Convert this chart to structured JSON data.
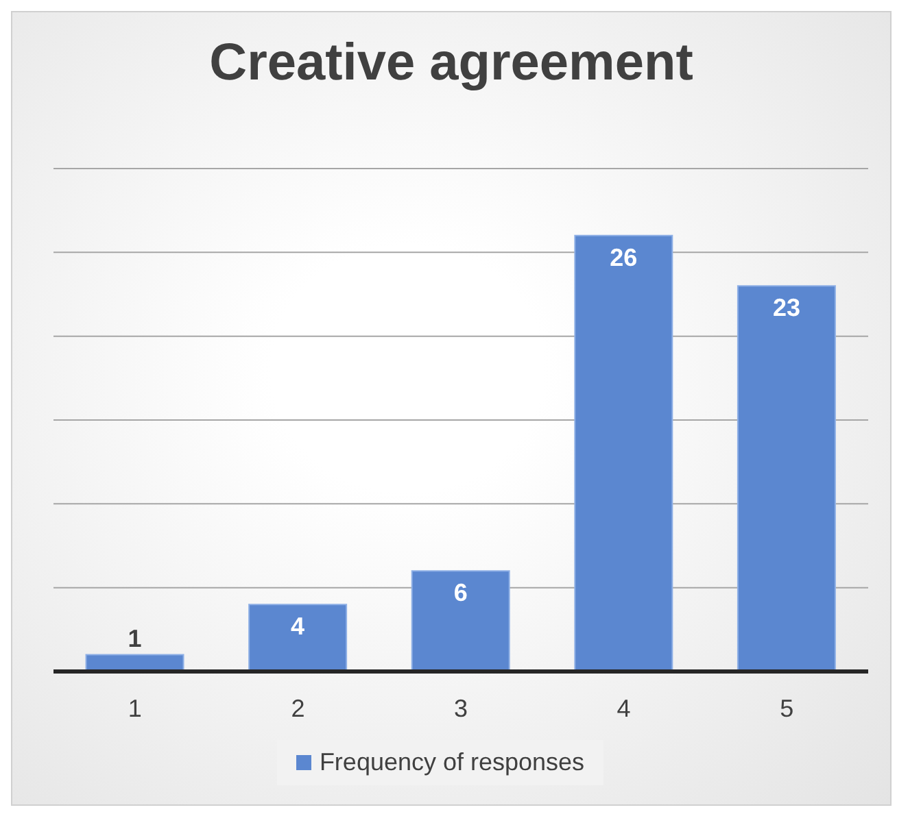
{
  "chart_data": {
    "type": "bar",
    "title": "Creative agreement",
    "categories": [
      "1",
      "2",
      "3",
      "4",
      "5"
    ],
    "series": [
      {
        "name": "Frequency of responses",
        "color": "#5b87d0",
        "values": [
          1,
          4,
          6,
          26,
          23
        ]
      }
    ],
    "ylim": [
      0,
      30
    ],
    "yticks": [
      {
        "value": 0,
        "label": null
      },
      {
        "value": 5,
        "label": null
      },
      {
        "value": 10,
        "label": null
      },
      {
        "value": 15,
        "label": null
      },
      {
        "value": 20,
        "label": null
      },
      {
        "value": 25,
        "label": null
      },
      {
        "value": 30,
        "label": null
      }
    ],
    "tick_labels": "x",
    "grid": "y",
    "legend": "bottom",
    "data_labels": true
  }
}
